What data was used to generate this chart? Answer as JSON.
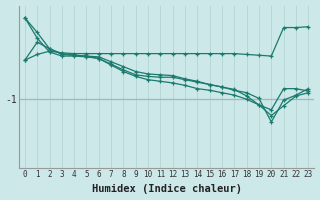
{
  "xlabel": "Humidex (Indice chaleur)",
  "bg_color": "#cce8e8",
  "line_color": "#1a7a6e",
  "grid_color_v": "#b8d8d8",
  "grid_color_h": "#a0b8b8",
  "xlim": [
    -0.5,
    23.5
  ],
  "ylim": [
    -1.85,
    0.15
  ],
  "yticks": [
    -1
  ],
  "xticks": [
    0,
    1,
    2,
    3,
    4,
    5,
    6,
    7,
    8,
    9,
    10,
    11,
    12,
    13,
    14,
    15,
    16,
    17,
    18,
    19,
    20,
    21,
    22,
    23
  ],
  "series": [
    [
      0.0,
      -0.18,
      -0.38,
      -0.45,
      -0.46,
      -0.47,
      -0.48,
      -0.54,
      -0.6,
      -0.66,
      -0.69,
      -0.7,
      -0.71,
      -0.75,
      -0.78,
      -0.82,
      -0.85,
      -0.88,
      -0.96,
      -1.07,
      -1.13,
      -0.87,
      -0.87,
      -0.9
    ],
    [
      0.0,
      -0.25,
      -0.42,
      -0.47,
      -0.47,
      -0.48,
      -0.5,
      -0.57,
      -0.64,
      -0.7,
      -0.72,
      -0.73,
      -0.73,
      -0.76,
      -0.79,
      -0.82,
      -0.85,
      -0.89,
      -0.92,
      -0.99,
      -1.28,
      -1.01,
      -0.95,
      -0.87
    ],
    [
      -0.52,
      -0.45,
      -0.41,
      -0.43,
      -0.44,
      -0.44,
      -0.44,
      -0.44,
      -0.44,
      -0.44,
      -0.44,
      -0.44,
      -0.44,
      -0.44,
      -0.44,
      -0.44,
      -0.44,
      -0.44,
      -0.45,
      -0.46,
      -0.47,
      -0.12,
      -0.12,
      -0.11
    ],
    [
      -0.52,
      -0.3,
      -0.38,
      -0.44,
      -0.46,
      -0.47,
      -0.5,
      -0.58,
      -0.66,
      -0.72,
      -0.76,
      -0.78,
      -0.8,
      -0.83,
      -0.87,
      -0.89,
      -0.92,
      -0.95,
      -1.0,
      -1.07,
      -1.2,
      -1.08,
      -0.96,
      -0.92
    ]
  ]
}
